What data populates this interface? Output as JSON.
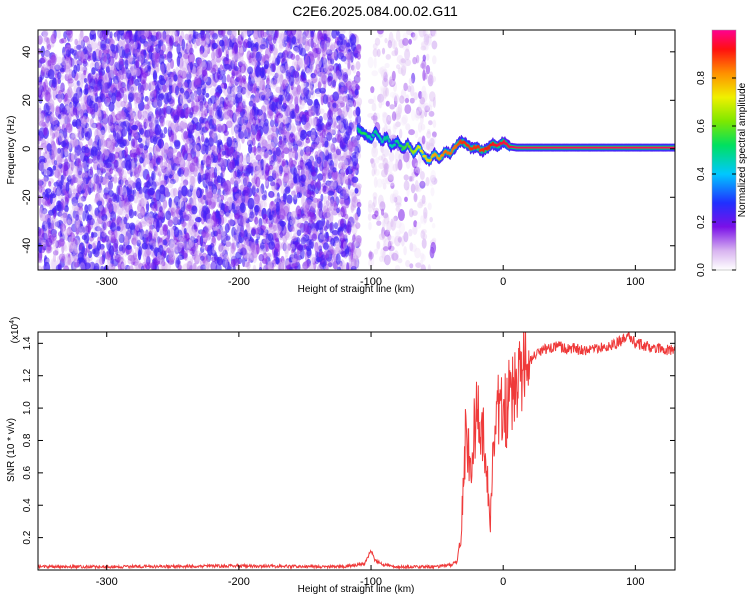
{
  "title": "C2E6.2025.084.00.02.G11",
  "chart_data": [
    {
      "type": "heatmap",
      "xlabel": "Height of straight line (km)",
      "ylabel": "Frequency (Hz)",
      "xlim": [
        -352,
        130
      ],
      "ylim": [
        -50,
        49
      ],
      "x_ticks": [
        -300,
        -200,
        -100,
        0,
        100
      ],
      "y_ticks": [
        -40,
        -20,
        0,
        20,
        40
      ],
      "colorbar": {
        "label": "Normalized spectral amplitude",
        "range": [
          0,
          1
        ],
        "ticks": [
          0.0,
          0.2,
          0.4,
          0.6,
          0.8
        ],
        "tick_labels": [
          "0.0",
          "0.2",
          "0.4",
          "0.6",
          "0.8"
        ]
      },
      "noise_regions": [
        {
          "x0": -352,
          "x1": -109,
          "level": 0.35
        },
        {
          "x0": -101,
          "x1": -52,
          "level": 0.15
        }
      ],
      "signal_trace": {
        "x": [
          -110,
          -105,
          -100,
          -97,
          -92,
          -88,
          -85,
          -80,
          -76,
          -72,
          -68,
          -64,
          -60,
          -56,
          -52,
          -48,
          -44,
          -40,
          -36,
          -32,
          -28,
          -24,
          -20,
          -16,
          -12,
          -8,
          -4,
          0,
          4,
          10,
          20,
          40,
          60,
          80,
          100,
          120,
          130
        ],
        "y": [
          8,
          6,
          4,
          7,
          3,
          5,
          1,
          3,
          0,
          2,
          -2,
          1,
          -3,
          -5,
          -2,
          -4,
          -1,
          -2,
          1,
          3,
          2,
          0,
          1,
          -1,
          0,
          2,
          1,
          3,
          1,
          0.5,
          0.5,
          0.5,
          0.5,
          0.5,
          0.5,
          0.5,
          0.5
        ],
        "amplitude": [
          0.5,
          0.55,
          0.45,
          0.5,
          0.45,
          0.5,
          0.45,
          0.5,
          0.55,
          0.6,
          0.65,
          0.7,
          0.75,
          0.75,
          0.8,
          0.8,
          0.85,
          0.85,
          0.85,
          0.9,
          0.9,
          0.9,
          0.9,
          0.9,
          0.92,
          0.92,
          0.95,
          0.95,
          0.95,
          0.97,
          0.97,
          0.97,
          0.97,
          0.97,
          0.97,
          0.97,
          0.97
        ]
      }
    },
    {
      "type": "line",
      "xlabel": "Height of straight line (km)",
      "ylabel": "SNR (10 * v/v)",
      "y_multiplier": "(x10",
      "y_multiplier_exp": "4",
      "y_multiplier_close": ")",
      "xlim": [
        -352,
        130
      ],
      "ylim": [
        0,
        1.47
      ],
      "x_ticks": [
        -300,
        -200,
        -100,
        0,
        100
      ],
      "y_ticks": [
        0.2,
        0.4,
        0.6,
        0.8,
        1.0,
        1.2,
        1.4
      ],
      "y_tick_labels": [
        "0.2",
        "0.4",
        "0.6",
        "0.8",
        "1.0",
        "1.2",
        "1.4"
      ],
      "color": "#ef3a3a",
      "series": [
        {
          "x": [
            -352,
            -300,
            -200,
            -120,
            -105,
            -100,
            -97,
            -90,
            -80,
            -60,
            -50,
            -40,
            -35,
            -32,
            -30,
            -28,
            -25,
            -20,
            -15,
            -12,
            -10,
            -8,
            -5,
            0,
            5,
            10,
            15,
            20,
            25,
            30,
            40,
            60,
            80,
            95,
            100,
            110,
            120,
            130
          ],
          "y": [
            0.02,
            0.02,
            0.025,
            0.02,
            0.04,
            0.12,
            0.06,
            0.03,
            0.02,
            0.02,
            0.02,
            0.03,
            0.05,
            0.2,
            0.55,
            0.9,
            0.65,
            0.95,
            0.8,
            0.55,
            0.25,
            0.7,
            1.0,
            0.95,
            1.05,
            1.15,
            1.25,
            1.3,
            1.32,
            1.36,
            1.38,
            1.36,
            1.38,
            1.44,
            1.4,
            1.38,
            1.36,
            1.36
          ]
        }
      ]
    }
  ]
}
